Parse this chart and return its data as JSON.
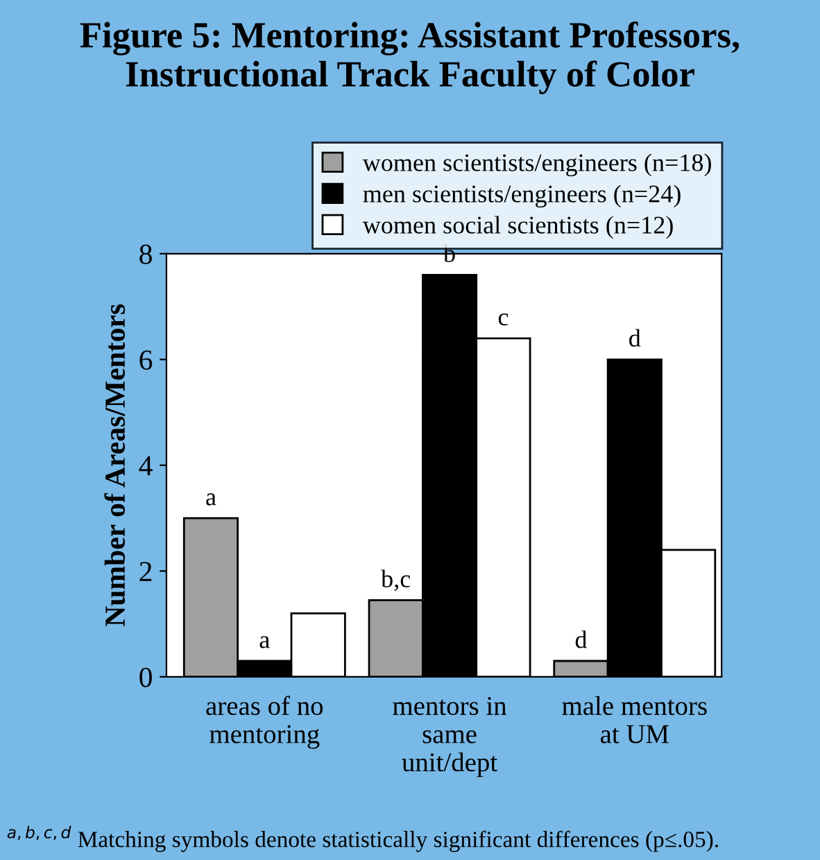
{
  "chart_data": {
    "type": "bar",
    "title": "Figure 5: Mentoring: Assistant Professors,\nInstructional Track Faculty of Color",
    "ylabel": "Number of Areas/Mentors",
    "categories": [
      "areas of no\nmentoring",
      "mentors in\nsame\nunit/dept",
      "male mentors\nat UM"
    ],
    "series": [
      {
        "name": "women scientists/engineers (n=18)",
        "color": "#a0a0a0",
        "values": [
          3.0,
          1.45,
          0.3
        ],
        "value_labels": [
          "a",
          "b,c",
          "d"
        ]
      },
      {
        "name": "men scientists/engineers (n=24)",
        "color": "#000000",
        "values": [
          0.3,
          7.6,
          6.0
        ],
        "value_labels": [
          "a",
          "b",
          "d"
        ]
      },
      {
        "name": "women social scientists (n=12)",
        "color": "#ffffff",
        "values": [
          1.2,
          6.4,
          2.4
        ],
        "value_labels": [
          null,
          "c",
          null
        ]
      }
    ],
    "ylim": [
      0,
      8
    ],
    "yticks": [
      0,
      2,
      4,
      6,
      8
    ],
    "grid": false,
    "legend": "top right",
    "annotations": [
      "$^{a,b,c,d}$ Matching symbols denote statistically significant differences (p≤.05)."
    ]
  }
}
